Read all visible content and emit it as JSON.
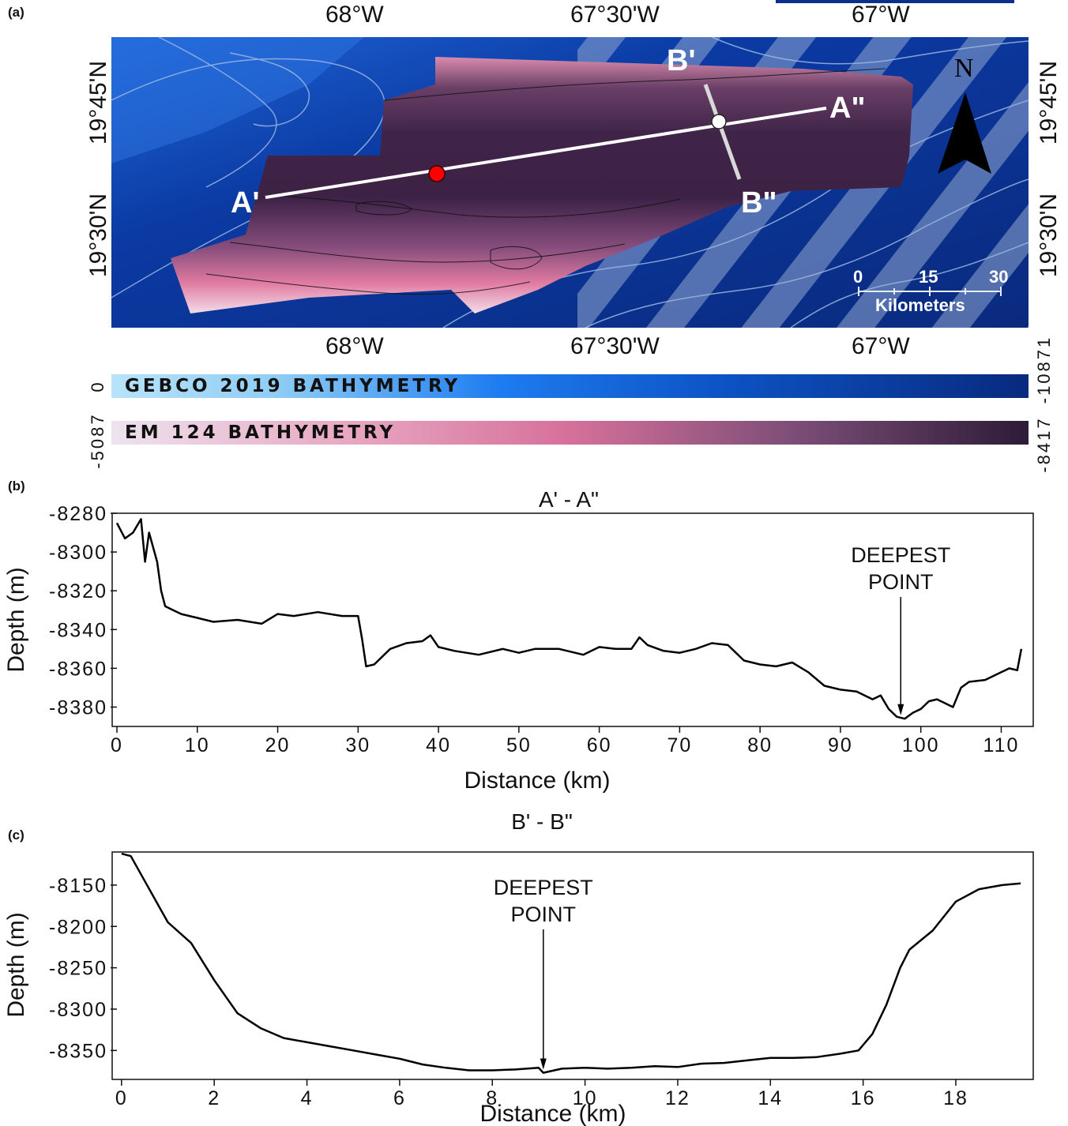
{
  "panels": {
    "a": {
      "letter": "(a)",
      "top_ticks": [
        "68°W",
        "67°30'W",
        "67°W"
      ],
      "bottom_ticks": [
        "68°W",
        "67°30'W",
        "67°W"
      ],
      "left_ticks": [
        "19°45'N",
        "19°30'N"
      ],
      "right_ticks": [
        "19°45'N",
        "19°30'N"
      ],
      "profile_labels": {
        "a_start": "A'",
        "a_end": "A\"",
        "b_start": "B'",
        "b_end": "B\""
      },
      "north_label": "N",
      "scale_bar": {
        "ticks": [
          "0",
          "15",
          "30"
        ],
        "unit": "Kilometers"
      },
      "colorbars": [
        {
          "name": "GEBCO 2019 BATHYMETRY",
          "min_label": "0",
          "max_label": "-10871",
          "colors": [
            "#a9dcf7",
            "#1e7df0",
            "#082a7e"
          ]
        },
        {
          "name": "EM 124 BATHYMETRY",
          "min_label": "-5087",
          "max_label": "-8417",
          "colors": [
            "#ede3ef",
            "#d6709a",
            "#2d1b37"
          ]
        }
      ],
      "colors": {
        "ocean": "#0b2f8f",
        "em124_deep": "#3f2448",
        "em124_shallow": "#e27aa2",
        "profile_line": "#ffffff",
        "deepest_marker": "#ff0000"
      }
    },
    "b": {
      "letter": "(b)",
      "chart_data": {
        "type": "line",
        "title": "A' - A\"",
        "xlabel": "Distance (km)",
        "ylabel": "Depth (m)",
        "xlim": [
          0,
          113
        ],
        "ylim": [
          -8390,
          -8280
        ],
        "xticks": [
          "0",
          "10",
          "20",
          "30",
          "40",
          "50",
          "60",
          "70",
          "80",
          "90",
          "100",
          "110"
        ],
        "yticks": [
          "-8280",
          "-8300",
          "-8320",
          "-8340",
          "-8360",
          "-8380"
        ],
        "annotation": {
          "text_line1": "DEEPEST",
          "text_line2": "POINT",
          "x": 97.5,
          "y": -8385
        },
        "series": [
          {
            "x": [
              0,
              1,
              2,
              3,
              3.5,
              4,
              5,
              5.5,
              6,
              7,
              8,
              10,
              12,
              15,
              18,
              20,
              22,
              25,
              28,
              30,
              30.5,
              31,
              32,
              34,
              36,
              38,
              39,
              40,
              42,
              45,
              48,
              50,
              52,
              55,
              58,
              60,
              62,
              64,
              65,
              66,
              68,
              70,
              72,
              74,
              76,
              77,
              78,
              80,
              82,
              84,
              86,
              88,
              90,
              92,
              94,
              95,
              96,
              97,
              98,
              99,
              100,
              101,
              102,
              103,
              104,
              105,
              106,
              108,
              110,
              111,
              112,
              112.5
            ],
            "values": [
              -8285,
              -8293,
              -8290,
              -8283,
              -8305,
              -8290,
              -8305,
              -8320,
              -8328,
              -8330,
              -8332,
              -8334,
              -8336,
              -8335,
              -8337,
              -8332,
              -8333,
              -8331,
              -8333,
              -8333,
              -8345,
              -8359,
              -8358,
              -8350,
              -8347,
              -8346,
              -8343,
              -8349,
              -8351,
              -8353,
              -8350,
              -8352,
              -8350,
              -8350,
              -8353,
              -8349,
              -8350,
              -8350,
              -8344,
              -8348,
              -8351,
              -8352,
              -8350,
              -8347,
              -8348,
              -8352,
              -8356,
              -8358,
              -8359,
              -8357,
              -8362,
              -8369,
              -8371,
              -8372,
              -8376,
              -8374,
              -8381,
              -8385,
              -8386,
              -8383,
              -8381,
              -8377,
              -8376,
              -8378,
              -8380,
              -8370,
              -8367,
              -8366,
              -8362,
              -8360,
              -8361,
              -8350
            ]
          }
        ]
      }
    },
    "c": {
      "letter": "(c)",
      "chart_data": {
        "type": "line",
        "title": "B' - B\"",
        "xlabel": "Distance (km)",
        "ylabel": "Depth (m)",
        "xlim": [
          -0.1,
          19.5
        ],
        "ylim": [
          -8385,
          -8110
        ],
        "xticks": [
          "0",
          "2",
          "4",
          "6",
          "8",
          "10",
          "12",
          "14",
          "16",
          "18"
        ],
        "yticks": [
          "-8150",
          "-8200",
          "-8250",
          "-8300",
          "-8350"
        ],
        "annotation": {
          "text_line1": "DEEPEST",
          "text_line2": "POINT",
          "x": 9.1,
          "y": -8375
        },
        "series": [
          {
            "x": [
              0,
              0.2,
              0.5,
              0.8,
              1,
              1.5,
              2,
              2.5,
              3,
              3.5,
              4,
              4.5,
              5,
              5.5,
              6,
              6.5,
              7,
              7.5,
              8,
              8.5,
              9,
              9.1,
              9.5,
              10,
              10.5,
              11,
              11.5,
              12,
              12.5,
              13,
              13.5,
              14,
              14.5,
              15,
              15.5,
              15.9,
              16.2,
              16.5,
              16.8,
              17,
              17.5,
              18,
              18.5,
              19,
              19.4
            ],
            "values": [
              -8112,
              -8115,
              -8145,
              -8175,
              -8195,
              -8220,
              -8265,
              -8305,
              -8323,
              -8335,
              -8340,
              -8345,
              -8350,
              -8355,
              -8360,
              -8367,
              -8371,
              -8374,
              -8374,
              -8373,
              -8371,
              -8377,
              -8372,
              -8371,
              -8372,
              -8371,
              -8369,
              -8370,
              -8366,
              -8365,
              -8362,
              -8359,
              -8359,
              -8358,
              -8354,
              -8350,
              -8330,
              -8295,
              -8250,
              -8228,
              -8205,
              -8170,
              -8155,
              -8150,
              -8148
            ]
          }
        ]
      }
    }
  }
}
